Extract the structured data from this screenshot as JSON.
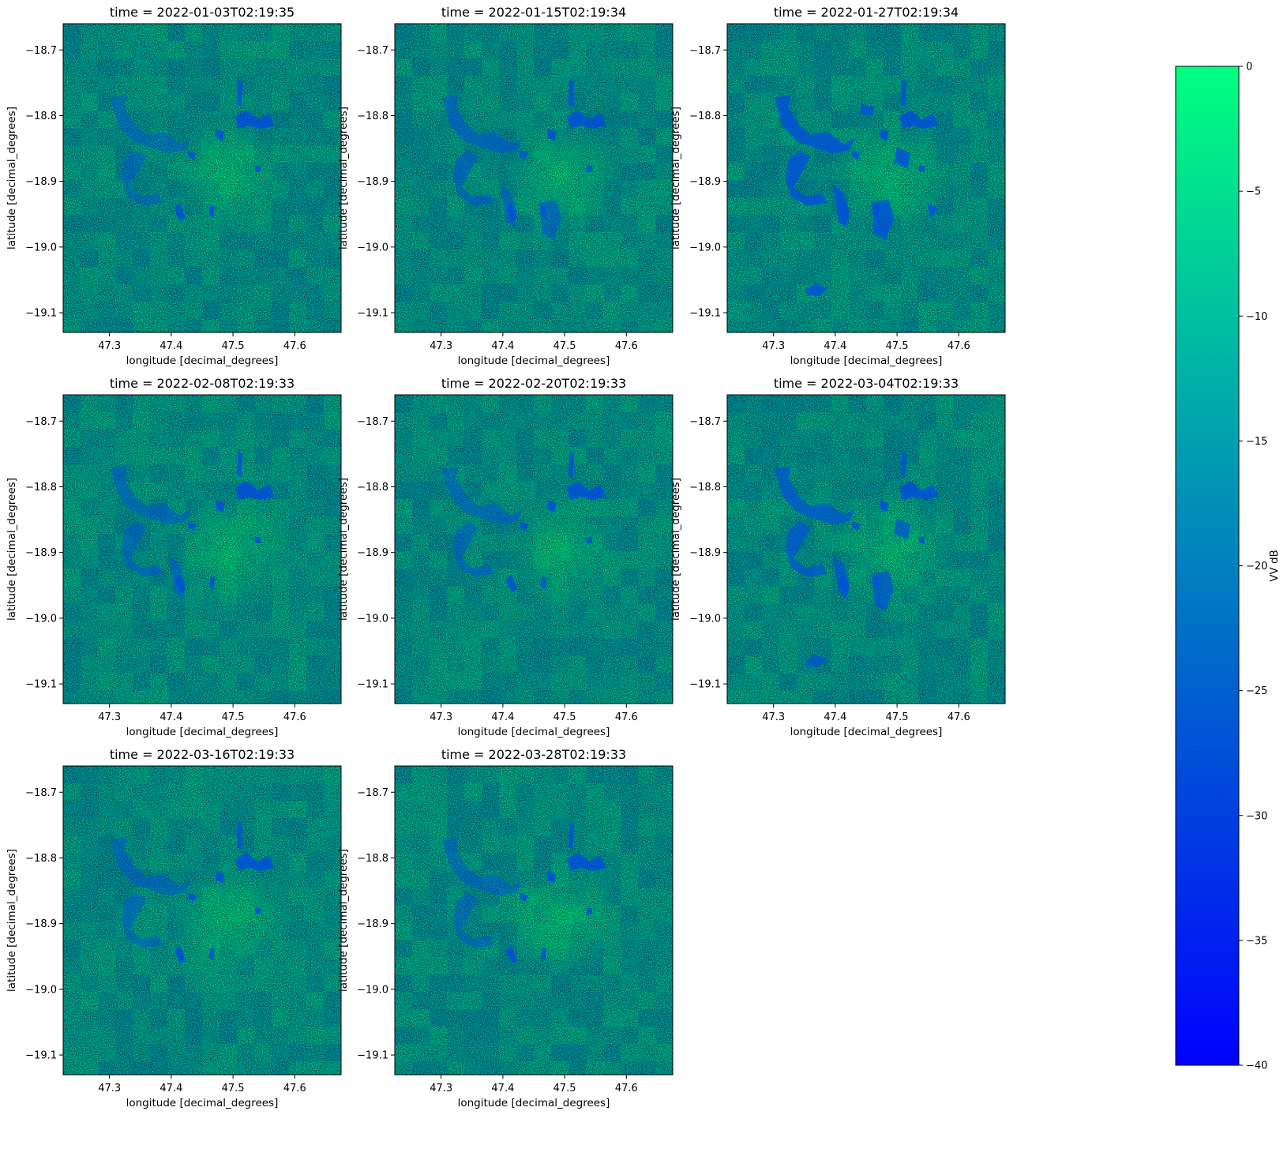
{
  "chart_data": {
    "type": "heatmap",
    "colormap": "winter",
    "colorbar": {
      "label": "VV dB",
      "range": [
        -40,
        0
      ],
      "ticks": [
        0,
        -5,
        -10,
        -15,
        -20,
        -25,
        -30,
        -35,
        -40
      ],
      "tick_labels": [
        "0",
        "−5",
        "−10",
        "−15",
        "−20",
        "−25",
        "−30",
        "−35",
        "−40"
      ],
      "colors": {
        "low": "#0000ff",
        "high": "#00ff80"
      }
    },
    "xlabel": "longitude [decimal_degrees]",
    "ylabel": "latitude [decimal_degrees]",
    "xlim": [
      47.225,
      47.675
    ],
    "ylim": [
      -19.13,
      -18.66
    ],
    "xticks": [
      47.3,
      47.4,
      47.5,
      47.6
    ],
    "xtick_labels": [
      "47.3",
      "47.4",
      "47.5",
      "47.6"
    ],
    "yticks": [
      -18.7,
      -18.8,
      -18.9,
      -19.0,
      -19.1
    ],
    "ytick_labels": [
      "−18.7",
      "−18.8",
      "−18.9",
      "−19.0",
      "−19.1"
    ],
    "panels": [
      {
        "title": "time = 2022-01-03T02:19:35",
        "flood_extent": 0.25
      },
      {
        "title": "time = 2022-01-15T02:19:34",
        "flood_extent": 0.45
      },
      {
        "title": "time = 2022-01-27T02:19:34",
        "flood_extent": 1.0
      },
      {
        "title": "time = 2022-02-08T02:19:33",
        "flood_extent": 0.35
      },
      {
        "title": "time = 2022-02-20T02:19:33",
        "flood_extent": 0.3
      },
      {
        "title": "time = 2022-03-04T02:19:33",
        "flood_extent": 0.75
      },
      {
        "title": "time = 2022-03-16T02:19:33",
        "flood_extent": 0.3
      },
      {
        "title": "time = 2022-03-28T02:19:33",
        "flood_extent": 0.3
      }
    ]
  }
}
